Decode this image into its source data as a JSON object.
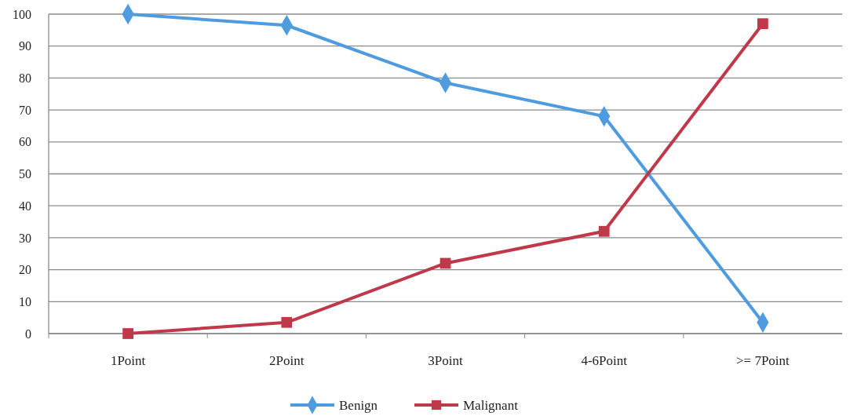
{
  "chart_data": {
    "type": "line",
    "categories": [
      "1Point",
      "2Point",
      "3Point",
      "4-6Point",
      ">= 7Point"
    ],
    "series": [
      {
        "name": "Benign",
        "color": "#4f9be0",
        "values": [
          100,
          96.5,
          78.5,
          68,
          3.5
        ],
        "marker": "diamond"
      },
      {
        "name": "Malignant",
        "color": "#c0394a",
        "values": [
          0,
          3.5,
          22,
          32,
          97
        ],
        "marker": "square"
      }
    ],
    "ylim": [
      0,
      100
    ],
    "yticks": [
      0,
      10,
      20,
      30,
      40,
      50,
      60,
      70,
      80,
      90,
      100
    ],
    "grid": "y",
    "legend": "bottom",
    "line_style": "solid"
  }
}
